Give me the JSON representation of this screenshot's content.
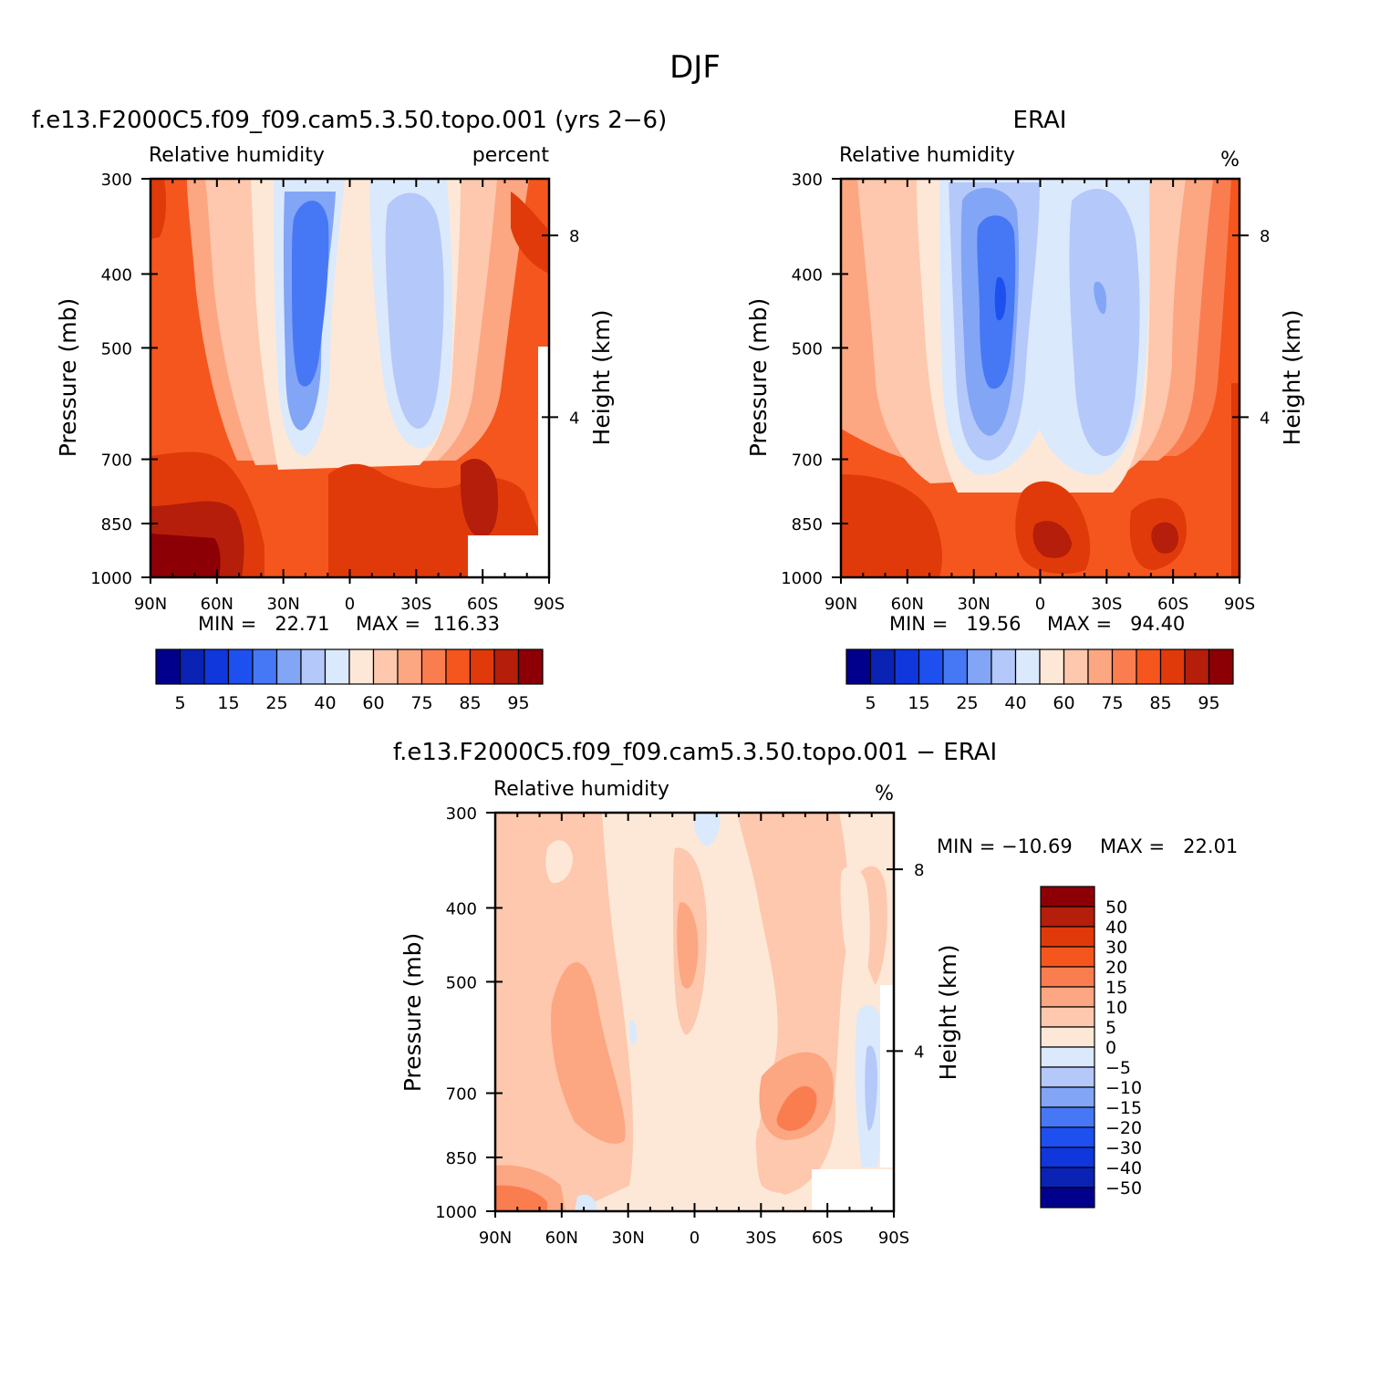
{
  "main_title": "DJF",
  "chart_data": [
    {
      "type": "heatmap",
      "title": "f.e13.F2000C5.f09_f09.cam5.3.50.topo.001 (yrs 2−6)",
      "left_label": "Relative humidity",
      "right_label": "percent",
      "xlabel": "",
      "ylabel": "Pressure (mb)",
      "y2label": "Height (km)",
      "x_ticks": [
        "90N",
        "60N",
        "30N",
        "0",
        "30S",
        "60S",
        "90S"
      ],
      "y_ticks": [
        "300",
        "400",
        "500",
        "700",
        "850",
        "1000"
      ],
      "y2_ticks": [
        "8",
        "4"
      ],
      "ylim": [
        1000,
        300
      ],
      "min_text": "MIN =   22.71",
      "max_text": "MAX =  116.33",
      "min": 22.71,
      "max": 116.33,
      "colorbar_labels": [
        "5",
        "15",
        "25",
        "40",
        "60",
        "75",
        "85",
        "95"
      ]
    },
    {
      "type": "heatmap",
      "title": "ERAI",
      "left_label": "Relative humidity",
      "right_label": "%",
      "xlabel": "",
      "ylabel": "Pressure (mb)",
      "y2label": "Height (km)",
      "x_ticks": [
        "90N",
        "60N",
        "30N",
        "0",
        "30S",
        "60S",
        "90S"
      ],
      "y_ticks": [
        "300",
        "400",
        "500",
        "700",
        "850",
        "1000"
      ],
      "y2_ticks": [
        "8",
        "4"
      ],
      "ylim": [
        1000,
        300
      ],
      "min_text": "MIN =   19.56",
      "max_text": "MAX =   94.40",
      "min": 19.56,
      "max": 94.4,
      "colorbar_labels": [
        "5",
        "15",
        "25",
        "40",
        "60",
        "75",
        "85",
        "95"
      ]
    },
    {
      "type": "heatmap",
      "title": "f.e13.F2000C5.f09_f09.cam5.3.50.topo.001 − ERAI",
      "left_label": "Relative humidity",
      "right_label": "%",
      "xlabel": "",
      "ylabel": "Pressure (mb)",
      "y2label": "Height (km)",
      "x_ticks": [
        "90N",
        "60N",
        "30N",
        "0",
        "30S",
        "60S",
        "90S"
      ],
      "y_ticks": [
        "300",
        "400",
        "500",
        "700",
        "850",
        "1000"
      ],
      "y2_ticks": [
        "8",
        "4"
      ],
      "ylim": [
        1000,
        300
      ],
      "min_text": "MIN = −10.69",
      "max_text": "MAX =   22.01",
      "min": -10.69,
      "max": 22.01,
      "colorbar_labels": [
        "50",
        "40",
        "30",
        "20",
        "15",
        "10",
        "5",
        "0",
        "−5",
        "−10",
        "−15",
        "−20",
        "−30",
        "−40",
        "−50"
      ]
    }
  ],
  "colors": {
    "rh_scale": [
      "#00008c",
      "#0a23b4",
      "#0f37dc",
      "#1e50f0",
      "#4678f5",
      "#82a5f5",
      "#b4c8fa",
      "#dbe9fc",
      "#fde8d7",
      "#fdc8ad",
      "#fca682",
      "#fa7d50",
      "#f5561e",
      "#e03a0a",
      "#b41e0a",
      "#8c0005"
    ],
    "diff_scale_top_to_bottom": [
      "#8c0005",
      "#b41e0a",
      "#e03a0a",
      "#f5561e",
      "#fa7d50",
      "#fca682",
      "#fdc8ad",
      "#fde8d7",
      "#dbe9fc",
      "#b4c8fa",
      "#82a5f5",
      "#4678f5",
      "#1e50f0",
      "#0f37dc",
      "#0a23b4",
      "#00008c"
    ]
  }
}
